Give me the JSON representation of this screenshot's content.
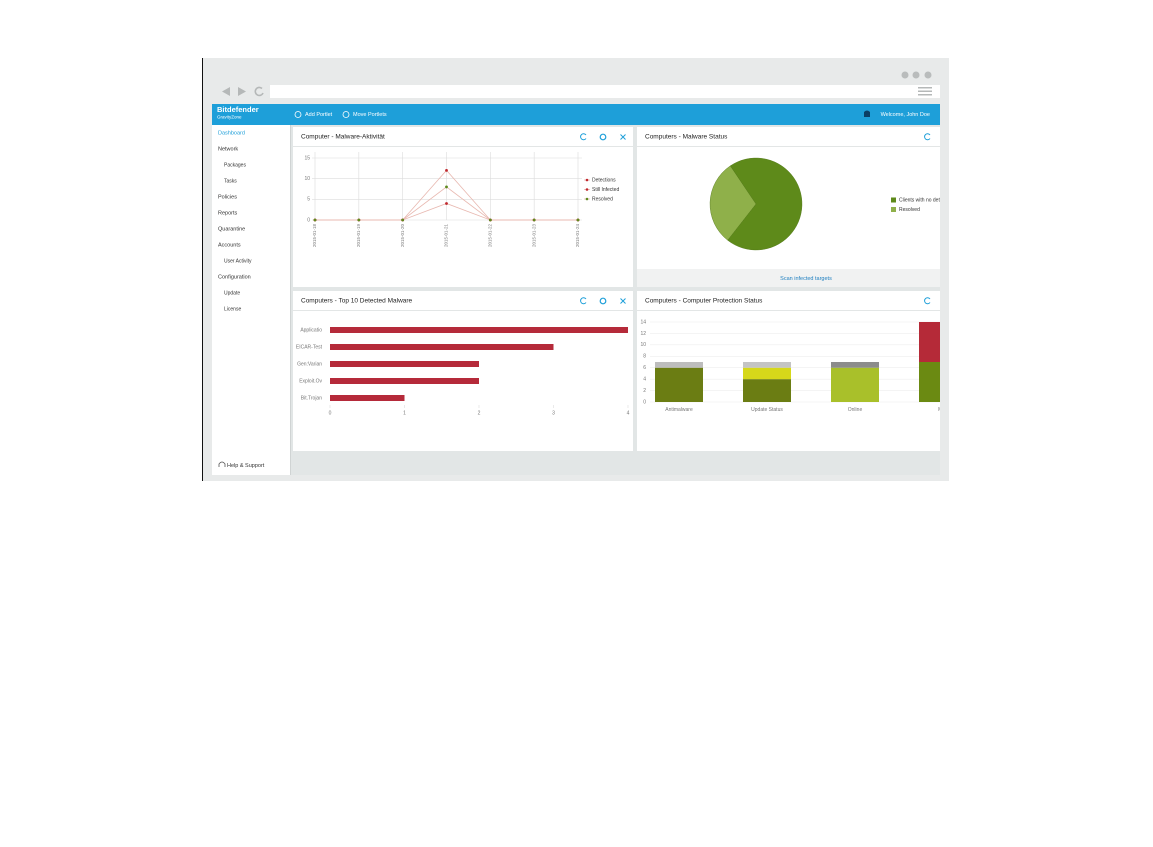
{
  "header": {
    "brand": "Bitdefender",
    "product": "GravityZone",
    "actions": [
      "Add Portlet",
      "Move Portlets"
    ],
    "welcome": "Welcome, John Doe"
  },
  "sidebar": {
    "items": [
      {
        "label": "Dashboard"
      },
      {
        "label": "Network",
        "children": [
          "Packages",
          "Tasks"
        ]
      },
      {
        "label": "Policies"
      },
      {
        "label": "Reports"
      },
      {
        "label": "Quarantine"
      },
      {
        "label": "Accounts",
        "children": [
          "User Activity"
        ]
      },
      {
        "label": "Configuration",
        "children": [
          "Update",
          "License"
        ]
      }
    ],
    "help": "Help & Support"
  },
  "chart_data": [
    {
      "type": "line",
      "title": "Computer - Malware-Aktivität",
      "categories": [
        "2015-01-18",
        "2015-01-19",
        "2015-01-20",
        "2015-01-21",
        "2015-01-22",
        "2015-01-23",
        "2015-01-24"
      ],
      "series": [
        {
          "name": "Detections",
          "color": "#c0272d",
          "values": [
            0,
            0,
            0,
            12,
            0,
            0,
            0
          ]
        },
        {
          "name": "Still Infected",
          "color": "#c0272d",
          "values": [
            0,
            0,
            0,
            4,
            0,
            0,
            0
          ]
        },
        {
          "name": "Resolved",
          "color": "#5e8a1e",
          "values": [
            0,
            0,
            0,
            8,
            0,
            0,
            0
          ]
        }
      ],
      "line_color": "#e8b8b0",
      "ylim": [
        0,
        15
      ],
      "yticks": [
        0,
        5,
        10,
        15
      ],
      "grid": true
    },
    {
      "type": "pie",
      "title": "Computers - Malware Status",
      "categories": [
        "Clients with no dete",
        "Resolved"
      ],
      "values": [
        70,
        30
      ],
      "colors": [
        "#5e8a1a",
        "#8fb04a"
      ],
      "footer_link": "Scan infected targets"
    },
    {
      "type": "hbar",
      "title": "Computers - Top 10 Detected Malware",
      "categories": [
        "Applicatio",
        "EICAR-Test",
        "Gen:Varian",
        "Exploit.Ov",
        "Bit.Trojan"
      ],
      "values": [
        4,
        3,
        2,
        2,
        1
      ],
      "color": "#b52a3a",
      "xlim": [
        0,
        4
      ],
      "xticks": [
        0,
        1,
        2,
        3,
        4
      ]
    },
    {
      "type": "stacked",
      "title": "Computers - Computer Protection Status",
      "categories": [
        "Antimalware",
        "Update Status",
        "Online",
        "Man"
      ],
      "series": [
        {
          "values": [
            6,
            4,
            6,
            7
          ],
          "colors": [
            "#6b7d13",
            "#6b7d13",
            "#a9c02a",
            "#6b8a12"
          ]
        },
        {
          "values": [
            0,
            2,
            0,
            7
          ],
          "colors": [
            "#d6d81a",
            "#d6d81a",
            "#d6d81a",
            "#b52a38"
          ]
        },
        {
          "values": [
            1,
            1,
            1,
            0
          ],
          "colors": [
            "#bdbdbd",
            "#c4c4c4",
            "#8c8c8c",
            "#bdbdbd"
          ]
        }
      ],
      "ylim": [
        0,
        14
      ],
      "yticks": [
        0,
        2,
        4,
        6,
        8,
        10,
        12,
        14
      ],
      "grid": true
    }
  ]
}
